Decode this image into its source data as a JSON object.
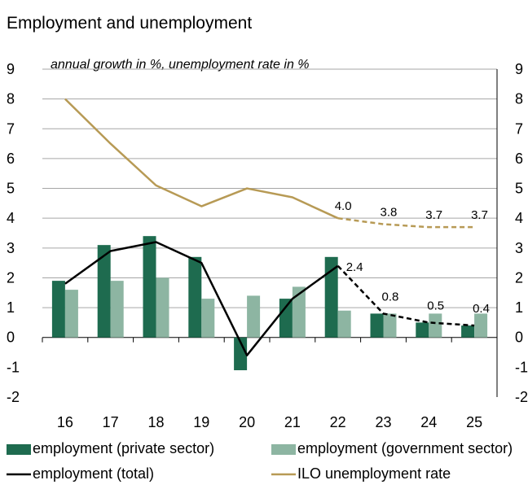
{
  "chart_data": {
    "type": "bar",
    "title": "Employment and unemployment",
    "subtitle": "annual growth in %, unemployment rate in %",
    "categories": [
      "16",
      "17",
      "18",
      "19",
      "20",
      "21",
      "22",
      "23",
      "24",
      "25"
    ],
    "ylim": [
      -2,
      9
    ],
    "yticks": [
      "-2",
      "-1",
      "0",
      "1",
      "2",
      "3",
      "4",
      "5",
      "6",
      "7",
      "8",
      "9"
    ],
    "grid": true,
    "legend_position": "bottom",
    "series": [
      {
        "name": "employment (private sector)",
        "kind": "bar",
        "color": "#1e6b4f",
        "values": [
          1.9,
          3.1,
          3.4,
          2.7,
          -1.1,
          1.3,
          2.7,
          0.8,
          0.5,
          0.4
        ]
      },
      {
        "name": "employment (government sector)",
        "kind": "bar",
        "color": "#8db5a2",
        "values": [
          1.6,
          1.9,
          2.0,
          1.3,
          1.4,
          1.7,
          0.9,
          0.8,
          0.8,
          0.8
        ]
      },
      {
        "name": "employment (total)",
        "kind": "line",
        "color": "#000000",
        "values": [
          1.8,
          2.9,
          3.2,
          2.5,
          -0.6,
          1.3,
          2.4,
          0.8,
          0.5,
          0.4
        ],
        "forecast_from_index": 6
      },
      {
        "name": "ILO unemployment rate",
        "kind": "line",
        "color": "#b79a55",
        "values": [
          8.0,
          6.5,
          5.1,
          4.4,
          5.0,
          4.7,
          4.0,
          3.8,
          3.7,
          3.7
        ],
        "forecast_from_index": 6
      }
    ],
    "data_labels": {
      "unemployment": [
        {
          "index": 6,
          "text": "4.0"
        },
        {
          "index": 7,
          "text": "3.8"
        },
        {
          "index": 8,
          "text": "3.7"
        },
        {
          "index": 9,
          "text": "3.7"
        }
      ],
      "total": [
        {
          "index": 6,
          "text": "2.4"
        },
        {
          "index": 7,
          "text": "0.8"
        },
        {
          "index": 8,
          "text": "0.5"
        },
        {
          "index": 9,
          "text": "0.4"
        }
      ]
    }
  }
}
